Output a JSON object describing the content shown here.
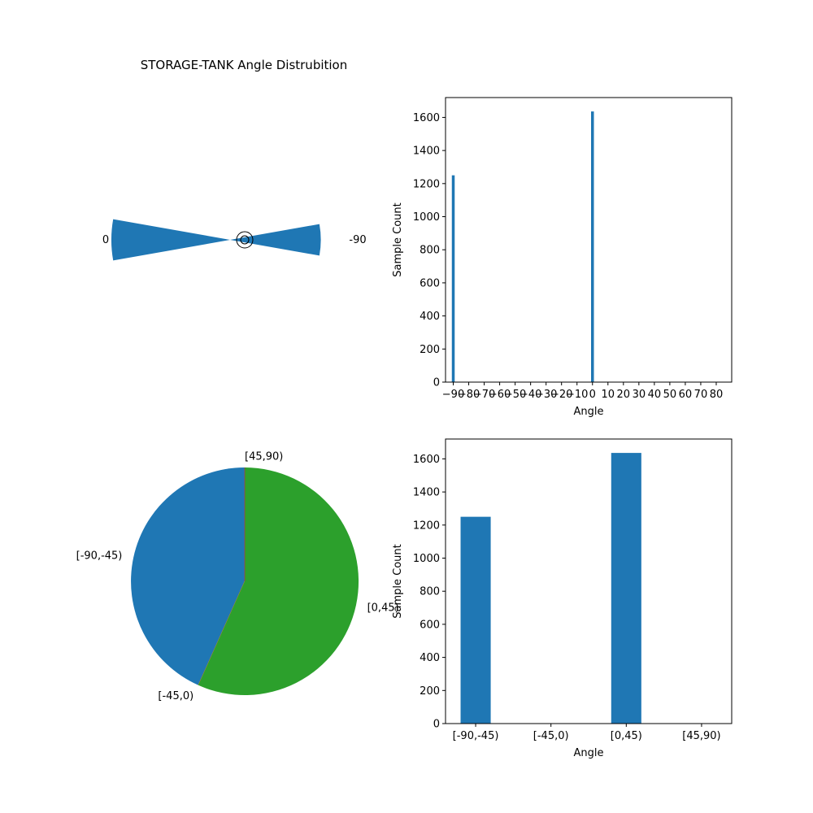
{
  "chart_data": [
    {
      "type": "polar-bar",
      "title": "STORAGE-TANK Angle Distrubition",
      "theta_labels": [
        "0",
        "-90"
      ],
      "bins": [
        {
          "angle_deg": -90,
          "count": 1250
        },
        {
          "angle_deg": 0,
          "count": 1636
        }
      ],
      "color": "#1f77b4"
    },
    {
      "type": "bar",
      "title": "",
      "xlabel": "Angle",
      "ylabel": "Sample Count",
      "xlim": [
        -95,
        90
      ],
      "ylim": [
        0,
        1720
      ],
      "xticks": [
        -90,
        -80,
        -70,
        -60,
        -50,
        -40,
        -30,
        -20,
        -10,
        0,
        10,
        20,
        30,
        40,
        50,
        60,
        70,
        80
      ],
      "xtick_labels": [
        "−90",
        "−80",
        "−70",
        "−60",
        "−50",
        "−40",
        "−30",
        "−20",
        "−10",
        "0",
        "10",
        "20",
        "30",
        "40",
        "50",
        "60",
        "70",
        "80"
      ],
      "yticks": [
        0,
        200,
        400,
        600,
        800,
        1000,
        1200,
        1400,
        1600
      ],
      "bars": [
        {
          "x": -90,
          "value": 1250
        },
        {
          "x": 0,
          "value": 1636
        }
      ],
      "color": "#1f77b4"
    },
    {
      "type": "pie",
      "title": "",
      "slices": [
        {
          "label": "[-90,-45)",
          "value": 1250,
          "color": "#1f77b4"
        },
        {
          "label": "[-45,0)",
          "value": 0,
          "color": "#ff7f0e"
        },
        {
          "label": "[0,45)",
          "value": 1636,
          "color": "#2ca02c"
        },
        {
          "label": "[45,90)",
          "value": 0,
          "color": "#d62728"
        }
      ]
    },
    {
      "type": "bar",
      "title": "",
      "xlabel": "Angle",
      "ylabel": "Sample Count",
      "ylim": [
        0,
        1720
      ],
      "categories": [
        "[-90,-45)",
        "[-45,0)",
        "[0,45)",
        "[45,90)"
      ],
      "values": [
        1250,
        0,
        1636,
        0
      ],
      "yticks": [
        0,
        200,
        400,
        600,
        800,
        1000,
        1200,
        1400,
        1600
      ],
      "color": "#1f77b4"
    }
  ]
}
